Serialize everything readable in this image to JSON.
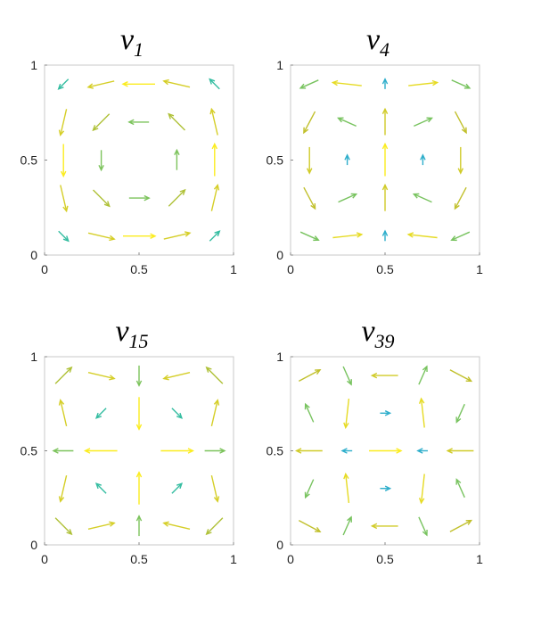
{
  "chart_data": [
    {
      "type": "quiver",
      "title": "v",
      "title_subscript": "1",
      "xlim": [
        0,
        1
      ],
      "ylim": [
        0,
        1
      ],
      "xticks": [
        0,
        0.5,
        1
      ],
      "yticks": [
        0,
        0.5,
        1
      ],
      "x": [
        0.1,
        0.3,
        0.5,
        0.7,
        0.9
      ],
      "y": [
        0.1,
        0.3,
        0.5,
        0.7,
        0.9
      ],
      "u": [
        [
          0.29,
          0.77,
          0.95,
          0.77,
          0.29
        ],
        [
          0.18,
          0.48,
          0.59,
          0.48,
          0.18
        ],
        [
          0,
          0,
          0,
          0,
          0
        ],
        [
          -0.18,
          -0.48,
          -0.59,
          -0.48,
          -0.18
        ],
        [
          -0.29,
          -0.77,
          -0.95,
          -0.77,
          -0.29
        ]
      ],
      "v": [
        [
          -0.29,
          -0.18,
          0,
          0.18,
          0.29
        ],
        [
          -0.77,
          -0.48,
          0,
          0.48,
          0.77
        ],
        [
          -0.95,
          -0.59,
          0,
          0.59,
          0.95
        ],
        [
          -0.77,
          -0.48,
          0,
          0.48,
          0.77
        ],
        [
          -0.29,
          -0.18,
          0,
          0.18,
          0.29
        ]
      ],
      "colormap": [
        "#3e26a8",
        "#2aa6e0",
        "#39c68a",
        "#c3c02b",
        "#fbec1f"
      ]
    },
    {
      "type": "quiver",
      "title": "v",
      "title_subscript": "4",
      "xlim": [
        0,
        1
      ],
      "ylim": [
        0,
        1
      ],
      "xticks": [
        0,
        0.5,
        1
      ],
      "yticks": [
        0,
        0.5,
        1
      ],
      "x": [
        0.1,
        0.3,
        0.5,
        0.7,
        0.9
      ],
      "y": [
        0.1,
        0.3,
        0.5,
        0.7,
        0.9
      ],
      "u": [
        [
          0.56,
          0.9,
          0,
          -0.9,
          -0.56
        ],
        [
          0.35,
          0.56,
          0,
          -0.56,
          -0.35
        ],
        [
          0,
          0,
          0,
          0,
          0
        ],
        [
          -0.35,
          -0.56,
          0,
          0.56,
          0.35
        ],
        [
          -0.56,
          -0.9,
          0,
          0.9,
          0.56
        ]
      ],
      "v": [
        [
          -0.25,
          0.1,
          0.31,
          0.1,
          -0.25
        ],
        [
          -0.66,
          0.25,
          0.81,
          0.25,
          -0.66
        ],
        [
          -0.81,
          0.31,
          1,
          0.31,
          -0.81
        ],
        [
          -0.66,
          0.25,
          0.81,
          0.25,
          -0.66
        ],
        [
          -0.25,
          0.1,
          0.31,
          0.1,
          -0.25
        ]
      ],
      "colormap": [
        "#3e26a8",
        "#2aa6e0",
        "#39c68a",
        "#c3c02b",
        "#fbec1f"
      ]
    },
    {
      "type": "quiver",
      "title": "v",
      "title_subscript": "15",
      "xlim": [
        0,
        1
      ],
      "ylim": [
        0,
        1
      ],
      "xticks": [
        0,
        0.5,
        1
      ],
      "yticks": [
        0,
        0.5,
        1
      ],
      "x": [
        0.1,
        0.3,
        0.5,
        0.7,
        0.9
      ],
      "y": [
        0.1,
        0.3,
        0.5,
        0.7,
        0.9
      ],
      "u": [
        [
          0.48,
          0.77,
          0,
          -0.77,
          -0.48
        ],
        [
          -0.18,
          -0.29,
          0,
          0.29,
          0.18
        ],
        [
          -0.59,
          -0.95,
          0,
          0.95,
          0.59
        ],
        [
          -0.18,
          -0.29,
          0,
          0.29,
          0.18
        ],
        [
          0.48,
          0.77,
          0,
          -0.77,
          -0.48
        ]
      ],
      "v": [
        [
          -0.48,
          0.18,
          0.59,
          0.18,
          -0.48
        ],
        [
          -0.77,
          0.29,
          0.95,
          0.29,
          -0.77
        ],
        [
          0,
          0,
          0,
          0,
          0
        ],
        [
          0.77,
          -0.29,
          -0.95,
          -0.29,
          0.77
        ],
        [
          0.48,
          -0.18,
          -0.59,
          -0.18,
          0.48
        ]
      ],
      "colormap": [
        "#3e26a8",
        "#2aa6e0",
        "#39c68a",
        "#c3c02b",
        "#fbec1f"
      ]
    },
    {
      "type": "quiver",
      "title": "v",
      "title_subscript": "39",
      "xlim": [
        0,
        1
      ],
      "ylim": [
        0,
        1
      ],
      "xticks": [
        0,
        0.5,
        1
      ],
      "yticks": [
        0,
        0.5,
        1
      ],
      "x": [
        0.1,
        0.3,
        0.5,
        0.7,
        0.9
      ],
      "y": [
        0.1,
        0.3,
        0.5,
        0.7,
        0.9
      ],
      "u": [
        [
          0.66,
          0.25,
          -0.81,
          0.25,
          0.66
        ],
        [
          -0.25,
          -0.1,
          0.31,
          -0.1,
          -0.25
        ],
        [
          -0.81,
          -0.31,
          1,
          -0.31,
          -0.81
        ],
        [
          -0.25,
          -0.1,
          0.31,
          -0.1,
          -0.25
        ],
        [
          0.66,
          0.25,
          -0.81,
          0.25,
          0.66
        ]
      ],
      "v": [
        [
          -0.35,
          0.56,
          0,
          -0.56,
          0.35
        ],
        [
          -0.56,
          0.9,
          0,
          -0.9,
          0.56
        ],
        [
          0,
          0,
          0,
          0,
          0
        ],
        [
          0.56,
          -0.9,
          0,
          0.9,
          -0.56
        ],
        [
          0.35,
          -0.56,
          0,
          0.56,
          -0.35
        ]
      ],
      "colormap": [
        "#3e26a8",
        "#2aa6e0",
        "#39c68a",
        "#c3c02b",
        "#fbec1f"
      ]
    }
  ]
}
